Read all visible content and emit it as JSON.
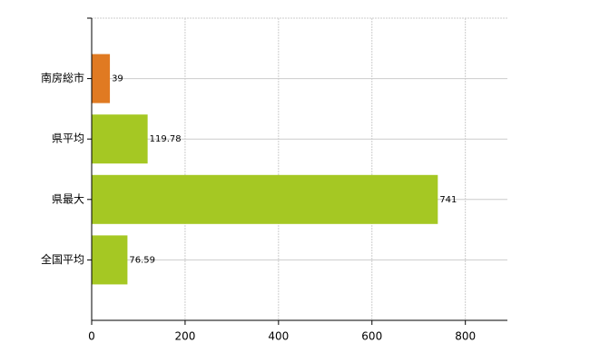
{
  "chart_data": {
    "type": "bar",
    "orientation": "horizontal",
    "categories": [
      "南房総市",
      "県平均",
      "県最大",
      "全国平均"
    ],
    "values": [
      39,
      119.78,
      741,
      76.59
    ],
    "colors": [
      "#e07a22",
      "#a5c823",
      "#a5c823",
      "#a5c823"
    ],
    "xlim": [
      0,
      890
    ],
    "xticks": [
      0,
      200,
      400,
      600,
      800
    ],
    "grid": true
  }
}
